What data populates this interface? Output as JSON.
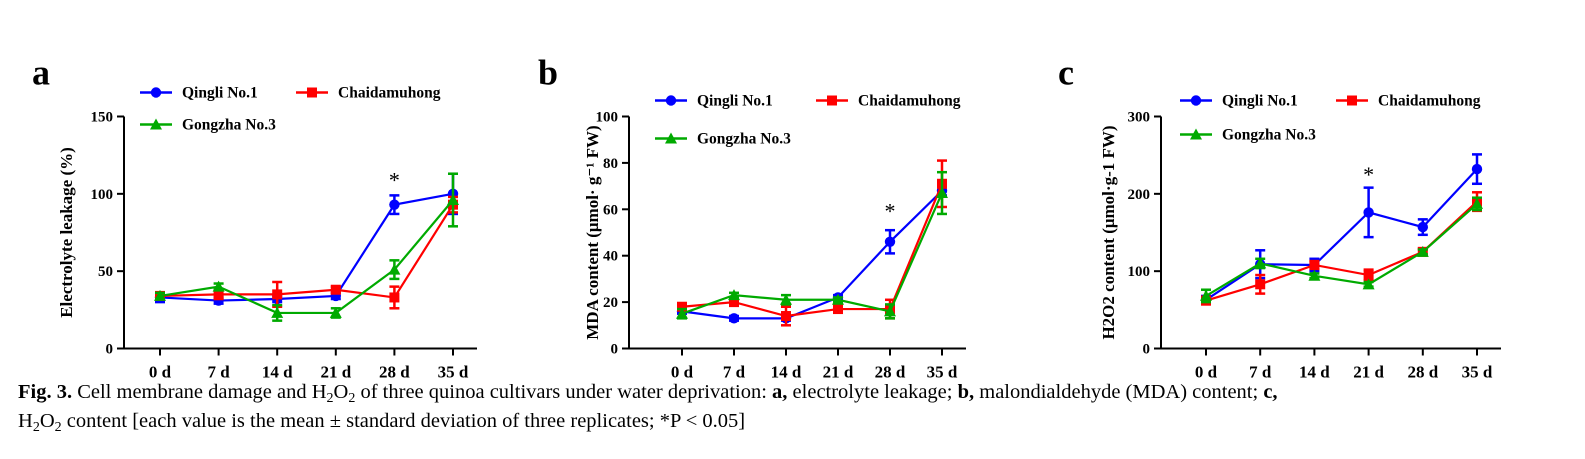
{
  "chart_data": [
    {
      "panel_label": "a",
      "type": "line",
      "categories": [
        "0 d",
        "7 d",
        "14 d",
        "21 d",
        "28 d",
        "35 d"
      ],
      "ylabel": "Electrolyte leakage (%)",
      "ylim": [
        0,
        150
      ],
      "yticks": [
        0,
        50,
        100,
        150
      ],
      "grid": false,
      "legend_placement": "top",
      "series": [
        {
          "name": "Qingli No.1",
          "color": "#0000ff",
          "marker": "circle",
          "values": [
            33,
            31,
            32,
            34,
            93,
            100
          ],
          "errors": [
            3,
            2,
            2,
            2,
            6,
            13
          ]
        },
        {
          "name": "Chaidamuhong",
          "color": "#ff0000",
          "marker": "square",
          "values": [
            34,
            35,
            35,
            38,
            33,
            93
          ],
          "errors": [
            2,
            3,
            8,
            2,
            7,
            5
          ]
        },
        {
          "name": "Gongzha No.3",
          "color": "#00aa00",
          "marker": "triangle",
          "values": [
            34,
            40,
            23,
            23,
            51,
            96
          ],
          "errors": [
            2,
            2,
            5,
            3,
            6,
            17
          ]
        }
      ],
      "annotations": [
        {
          "category": "28 d",
          "text": "*",
          "y": 104
        }
      ]
    },
    {
      "panel_label": "b",
      "type": "line",
      "categories": [
        "0 d",
        "7 d",
        "14 d",
        "21 d",
        "28 d",
        "35 d"
      ],
      "ylabel": "MDA content (μmol· g⁻¹ FW)",
      "ylim": [
        0,
        100
      ],
      "yticks": [
        0,
        20,
        40,
        60,
        80,
        100
      ],
      "grid": false,
      "legend_placement": "top",
      "series": [
        {
          "name": "Qingli No.1",
          "color": "#0000ff",
          "marker": "circle",
          "values": [
            16,
            13,
            13,
            22,
            46,
            68
          ],
          "errors": [
            1,
            1,
            1,
            1,
            5,
            2
          ]
        },
        {
          "name": "Chaidamuhong",
          "color": "#ff0000",
          "marker": "square",
          "values": [
            18,
            20,
            14,
            17,
            17,
            71
          ],
          "errors": [
            1,
            1,
            4,
            1,
            4,
            10
          ]
        },
        {
          "name": "Gongzha No.3",
          "color": "#00aa00",
          "marker": "triangle",
          "values": [
            15,
            23,
            21,
            21,
            16,
            67
          ],
          "errors": [
            2,
            1,
            2,
            1,
            3,
            9
          ]
        }
      ],
      "annotations": [
        {
          "category": "28 d",
          "text": "*",
          "y": 56
        }
      ]
    },
    {
      "panel_label": "c",
      "type": "line",
      "categories": [
        "0 d",
        "7 d",
        "14 d",
        "21 d",
        "28 d",
        "35 d"
      ],
      "ylabel": "H2O2 content (μmol·g-1 FW)",
      "ylim": [
        0,
        300
      ],
      "yticks": [
        0,
        100,
        200,
        300
      ],
      "grid": false,
      "legend_placement": "top",
      "series": [
        {
          "name": "Qingli No.1",
          "color": "#0000ff",
          "marker": "circle",
          "values": [
            63,
            109,
            108,
            176,
            157,
            232
          ],
          "errors": [
            5,
            18,
            8,
            32,
            10,
            19
          ]
        },
        {
          "name": "Chaidamuhong",
          "color": "#ff0000",
          "marker": "square",
          "values": [
            62,
            83,
            108,
            95,
            125,
            190
          ],
          "errors": [
            5,
            12,
            5,
            7,
            4,
            12
          ]
        },
        {
          "name": "Gongzha No.3",
          "color": "#00aa00",
          "marker": "triangle",
          "values": [
            68,
            110,
            94,
            83,
            125,
            187
          ],
          "errors": [
            8,
            6,
            3,
            3,
            3,
            8
          ]
        }
      ],
      "annotations": [
        {
          "category": "21 d",
          "text": "*",
          "y": 215
        }
      ]
    }
  ],
  "caption": {
    "fig_label": "Fig. 3.",
    "text1": " Cell membrane damage and H",
    "sub1": "2",
    "text2": "O",
    "sub2": "2",
    "text3": " of three quinoa cultivars under water deprivation: ",
    "a_label": "a,",
    "a_text": " electrolyte leakage; ",
    "b_label": "b,",
    "b_text": " malondialdehyde (MDA) content; ",
    "c_label": "c,",
    "line2_h": "H",
    "line2_sub1": "2",
    "line2_o": "O",
    "line2_sub2": "2",
    "line2_text": " content [each value is the mean ± standard deviation of three replicates; *P < 0.05]"
  }
}
